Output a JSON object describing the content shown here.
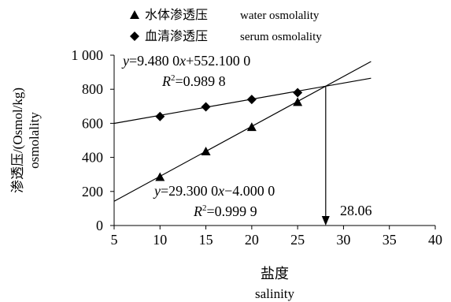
{
  "chart_data": {
    "type": "scatter",
    "xlabel_cn": "盐度",
    "xlabel_en": "salinity",
    "ylabel_cn": "渗透压/(Osmol/kg)",
    "ylabel_en": "osmolality",
    "xlim": [
      5,
      40
    ],
    "ylim": [
      0,
      1000
    ],
    "x_ticks": [
      5,
      10,
      15,
      20,
      25,
      30,
      35,
      40
    ],
    "x_tick_labels": [
      "5",
      "10",
      "15",
      "20",
      "25",
      "30",
      "35",
      "40"
    ],
    "y_ticks": [
      0,
      200,
      400,
      600,
      800,
      1000
    ],
    "y_tick_labels": [
      "0",
      "200",
      "400",
      "600",
      "800",
      "1 000"
    ],
    "grid": false,
    "legend_position": "top-left",
    "series": [
      {
        "name_cn": "水体渗透压",
        "name_en": "water osmolality",
        "marker": "triangle",
        "x": [
          10,
          15,
          20,
          25
        ],
        "y": [
          285,
          435,
          578,
          725
        ],
        "fit": {
          "slope": 29.3,
          "intercept": -4.0,
          "x_range": [
            5,
            33
          ]
        },
        "equation": {
          "y_prefix": "y",
          "eq_body": "=29.300 0",
          "x_part": "x",
          "eq_tail": "−4.000 0",
          "r_label": "R",
          "r_exp": "2",
          "r_value": "=0.999 9"
        }
      },
      {
        "name_cn": "血清渗透压",
        "name_en": "serum osmolality",
        "marker": "diamond",
        "x": [
          10,
          15,
          20,
          25
        ],
        "y": [
          640,
          697,
          740,
          780
        ],
        "fit": {
          "slope": 9.48,
          "intercept": 552.1,
          "x_range": [
            5,
            33
          ]
        },
        "equation": {
          "y_prefix": "y",
          "eq_body": "=9.480 0",
          "x_part": "x",
          "eq_tail": "+552.100 0",
          "r_label": "R",
          "r_exp": "2",
          "r_value": "=0.989 8"
        }
      }
    ],
    "annotation": {
      "x": 28.06,
      "label": "28.06"
    }
  }
}
